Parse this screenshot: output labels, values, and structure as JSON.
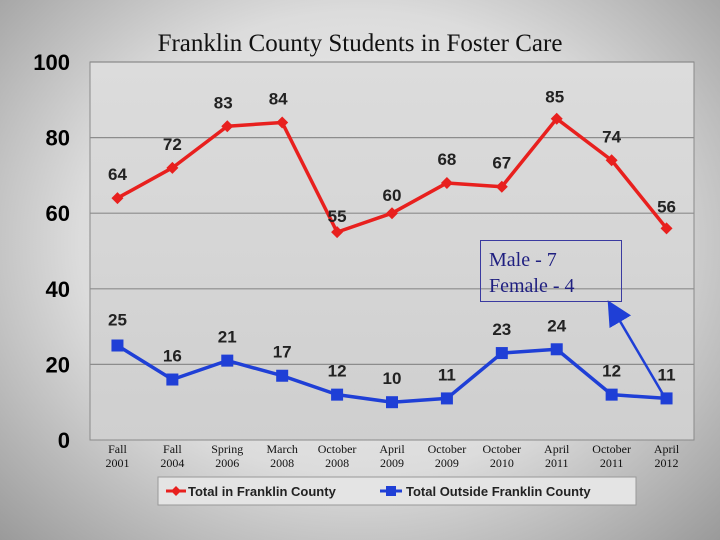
{
  "chart_data": {
    "type": "line",
    "title": "Franklin County Students in Foster Care",
    "categories": [
      [
        "Fall",
        "2001"
      ],
      [
        "Fall",
        "2004"
      ],
      [
        "Spring",
        "2006"
      ],
      [
        "March",
        "2008"
      ],
      [
        "October",
        "2008"
      ],
      [
        "April",
        "2009"
      ],
      [
        "October",
        "2009"
      ],
      [
        "October",
        "2010"
      ],
      [
        "April",
        "2011"
      ],
      [
        "October",
        "2011"
      ],
      [
        "April",
        "2012"
      ]
    ],
    "ylim": [
      0,
      100
    ],
    "yticks": [
      "0",
      "20",
      "40",
      "60",
      "80",
      "100"
    ],
    "grid": true,
    "legend_position": "bottom",
    "series": [
      {
        "name": "Total in Franklin County",
        "color": "#e8201e",
        "marker": "diamond",
        "values": [
          64,
          72,
          83,
          84,
          55,
          60,
          68,
          67,
          85,
          74,
          56
        ]
      },
      {
        "name": "Total Outside Franklin County",
        "color": "#1f3fd6",
        "marker": "square",
        "values": [
          25,
          16,
          21,
          17,
          12,
          10,
          11,
          23,
          24,
          12,
          11
        ]
      }
    ],
    "annotation": {
      "lines": [
        "Male - 7",
        "Female - 4"
      ],
      "points_to": {
        "series": 1,
        "category_index": 10
      }
    }
  }
}
